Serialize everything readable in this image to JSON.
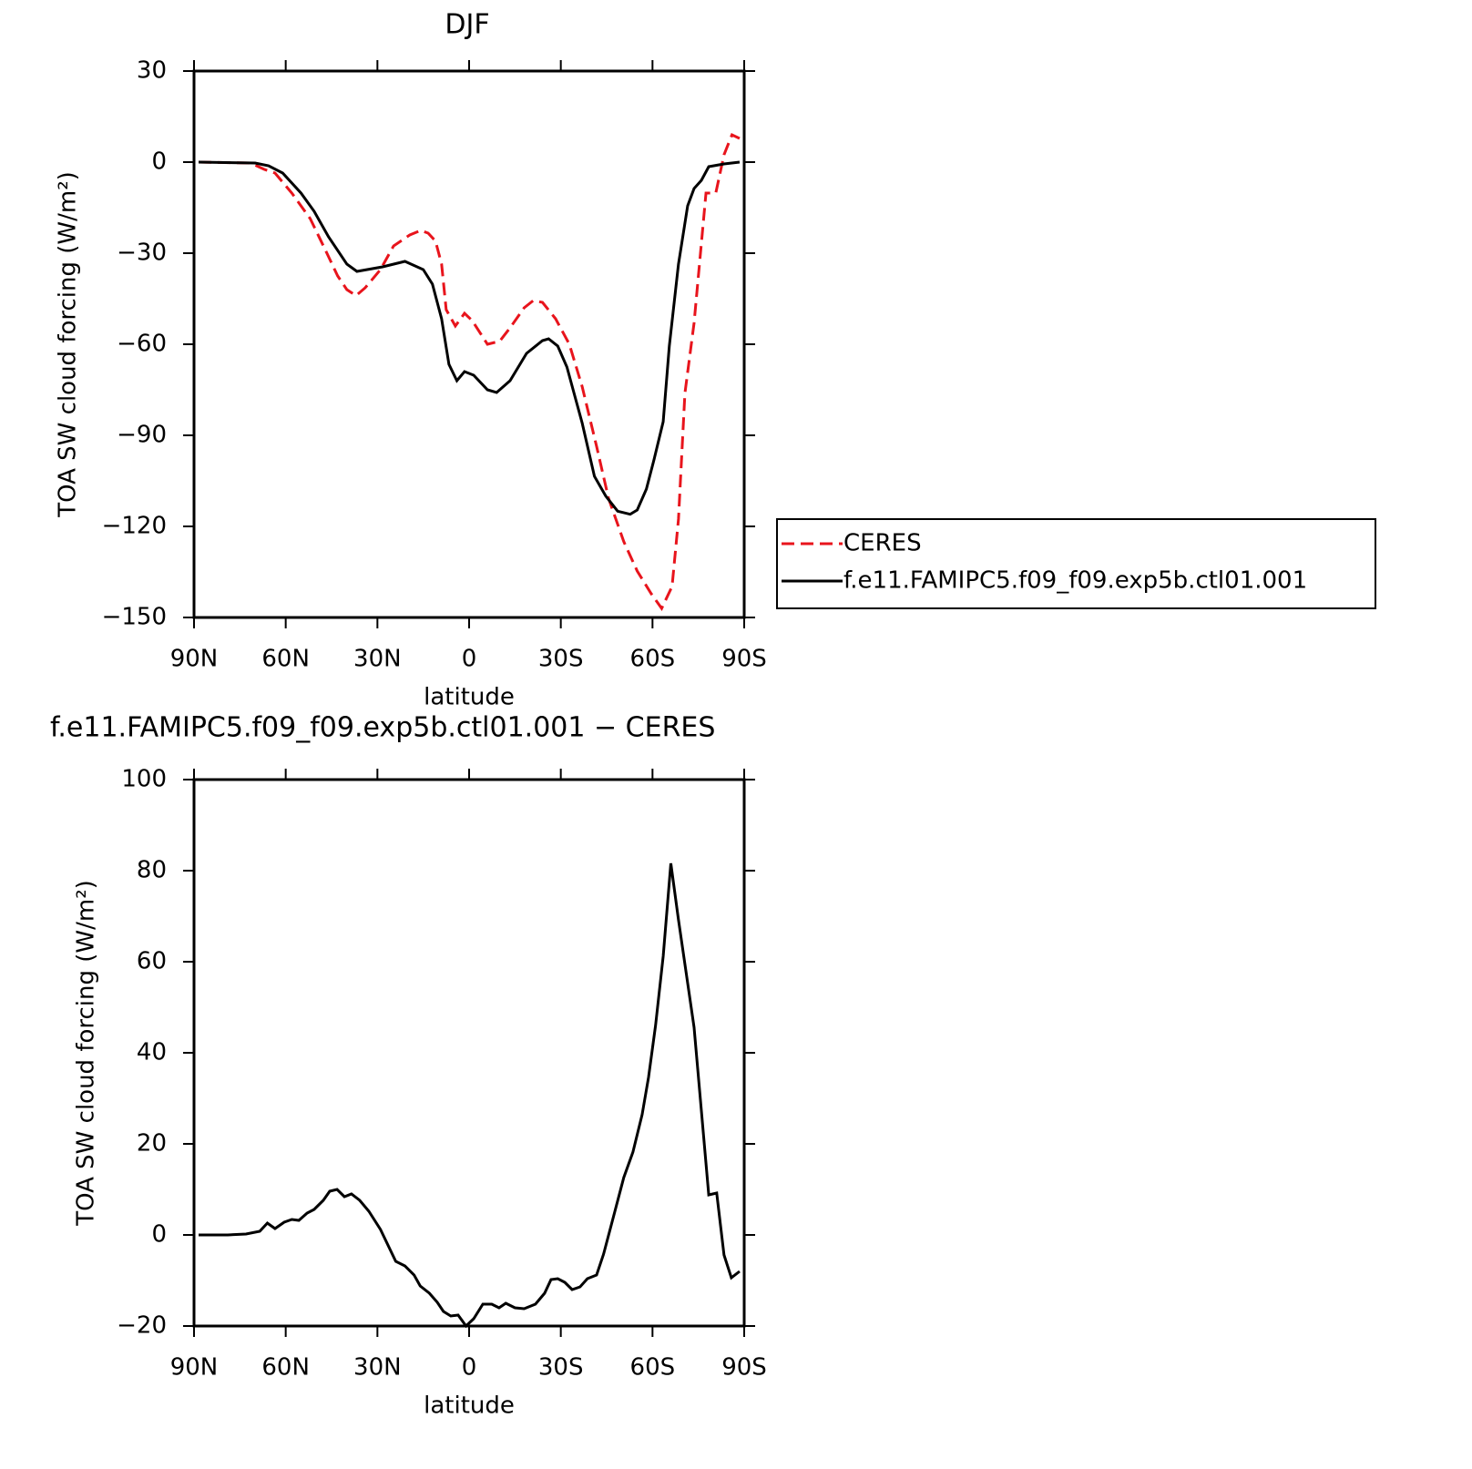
{
  "chart_data": [
    {
      "type": "line",
      "title": "DJF",
      "xlabel": "latitude",
      "ylabel": "TOA SW cloud forcing (W/m²)",
      "xlim": [
        90,
        -90
      ],
      "xticks": [
        {
          "value": 90,
          "label": "90N"
        },
        {
          "value": 60,
          "label": "60N"
        },
        {
          "value": 30,
          "label": "30N"
        },
        0,
        {
          "value": -30,
          "label": "30S"
        },
        {
          "value": -60,
          "label": "60S"
        },
        {
          "value": -90,
          "label": "90S"
        }
      ],
      "ylim": [
        -150,
        30
      ],
      "yticks": [
        {
          "value": -150,
          "label": "−150"
        },
        {
          "value": -120,
          "label": "−120"
        },
        {
          "value": -90,
          "label": "−90"
        },
        {
          "value": -60,
          "label": "−60"
        },
        {
          "value": -30,
          "label": "−30"
        },
        0,
        30
      ],
      "legend": "right",
      "series": [
        {
          "name": "CERES",
          "color": "#e8141c",
          "dashed": true,
          "x": [
            88.5,
            71.5,
            67,
            63.5,
            58,
            52,
            47,
            43,
            40,
            37,
            34,
            29,
            24.7,
            19.4,
            15.8,
            13.4,
            11,
            9,
            7.5,
            4.5,
            1.5,
            -1,
            -6,
            -10,
            -13.4,
            -18,
            -21,
            -24,
            -28.3,
            -32.8,
            -37,
            -41.7,
            -45.6,
            -50.6,
            -55,
            -59.6,
            -63,
            -66.4,
            -68.5,
            -70.6,
            -73.6,
            -77.5,
            -80.7,
            -83.4,
            -86,
            -88.5
          ],
          "values": [
            0,
            -0.3,
            -2.4,
            -3.6,
            -10.2,
            -18.6,
            -29,
            -37.5,
            -42,
            -44,
            -41.4,
            -35.4,
            -27.6,
            -24,
            -22.5,
            -23.4,
            -26,
            -33.6,
            -48.6,
            -54,
            -49.8,
            -52.2,
            -60,
            -59,
            -54.6,
            -48,
            -45.6,
            -46.2,
            -51.6,
            -60,
            -74,
            -93.6,
            -110.7,
            -125,
            -134.7,
            -142.2,
            -147,
            -139.8,
            -117.6,
            -76.2,
            -53,
            -10.2,
            -10.2,
            2.4,
            9,
            7.8
          ]
        },
        {
          "name": "f.e11.FAMIPC5.f09_f09.exp5b.ctl01.001",
          "color": "#000000",
          "dashed": false,
          "x": [
            88.5,
            70,
            65.6,
            61,
            55,
            50.7,
            46,
            40,
            36.7,
            28.3,
            21,
            15,
            12,
            9,
            6.6,
            4,
            1.5,
            -1.5,
            -6,
            -9,
            -13.4,
            -18.8,
            -24,
            -26,
            -29,
            -32,
            -37,
            -41,
            -44.7,
            -48.6,
            -52.7,
            -55,
            -58,
            -60.5,
            -63.5,
            -65.5,
            -68.5,
            -71.5,
            -73.6,
            -76,
            -78.4,
            -83.4,
            -88.5
          ],
          "values": [
            0,
            -0.3,
            -1.2,
            -3.6,
            -10.2,
            -16.2,
            -24.6,
            -33.6,
            -36,
            -34.5,
            -32.7,
            -35.4,
            -40.2,
            -51.6,
            -66.6,
            -72,
            -69,
            -70.2,
            -75,
            -75.9,
            -72,
            -63,
            -58.8,
            -58.2,
            -60.6,
            -67.5,
            -86,
            -103.5,
            -110,
            -115,
            -116,
            -114.6,
            -107.7,
            -98,
            -85.5,
            -60.6,
            -33.6,
            -14.4,
            -8.7,
            -6,
            -1.5,
            -0.6,
            0
          ]
        }
      ]
    },
    {
      "type": "line",
      "title": "f.e11.FAMIPC5.f09_f09.exp5b.ctl01.001 − CERES",
      "xlabel": "latitude",
      "ylabel": "TOA SW cloud forcing (W/m²)",
      "xlim": [
        90,
        -90
      ],
      "xticks": [
        {
          "value": 90,
          "label": "90N"
        },
        {
          "value": 60,
          "label": "60N"
        },
        {
          "value": 30,
          "label": "30N"
        },
        0,
        {
          "value": -30,
          "label": "30S"
        },
        {
          "value": -60,
          "label": "60S"
        },
        {
          "value": -90,
          "label": "90S"
        }
      ],
      "ylim": [
        -20,
        100
      ],
      "yticks": [
        {
          "value": -20,
          "label": "−20"
        },
        0,
        20,
        40,
        60,
        80,
        100
      ],
      "series": [
        {
          "color": "#000000",
          "dashed": false,
          "x": [
            88.5,
            79,
            73,
            68.5,
            66,
            63.5,
            60.5,
            58,
            55.7,
            53,
            50.7,
            47.7,
            45.6,
            43.2,
            40.8,
            38.5,
            35.8,
            32.8,
            29,
            24,
            21,
            18,
            16,
            13,
            10.4,
            8.4,
            6,
            3.6,
            1,
            -1.5,
            -4.5,
            -7.4,
            -9.8,
            -12,
            -15,
            -18,
            -21.7,
            -24.7,
            -26.8,
            -29,
            -31.3,
            -33.7,
            -36.3,
            -38.7,
            -41.7,
            -44,
            -47.7,
            -50.6,
            -53.6,
            -56.6,
            -58.7,
            -61,
            -63.5,
            -66,
            -68.5,
            -73.6,
            -76,
            -78.4,
            -81,
            -83.4,
            -85.8,
            -88.5
          ],
          "values": [
            0,
            0,
            0.2,
            0.8,
            2.6,
            1.4,
            2.8,
            3.4,
            3.2,
            4.8,
            5.6,
            7.6,
            9.6,
            10,
            8.4,
            9,
            7.6,
            5.2,
            1.2,
            -5.8,
            -6.8,
            -8.8,
            -11.2,
            -12.8,
            -14.8,
            -16.8,
            -17.8,
            -17.6,
            -20,
            -18.4,
            -15.2,
            -15.2,
            -16,
            -15,
            -16,
            -16.2,
            -15.2,
            -12.8,
            -9.8,
            -9.6,
            -10.4,
            -12,
            -11.4,
            -9.6,
            -8.8,
            -4.2,
            5.2,
            12.6,
            18.2,
            26.4,
            34.6,
            46,
            61.2,
            81.6,
            69.2,
            45.6,
            27.2,
            8.8,
            9.2,
            -4.4,
            -9.4,
            -8
          ]
        }
      ]
    }
  ]
}
